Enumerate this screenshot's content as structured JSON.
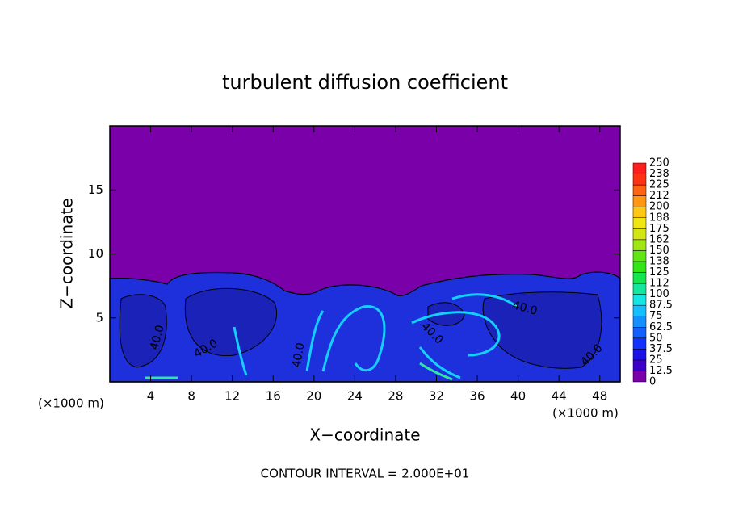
{
  "chart_data": {
    "type": "contour",
    "title": "turbulent diffusion coefficient",
    "xlabel": "X−coordinate",
    "ylabel": "Z−coordinate",
    "x_unit_left": "(×1000 m)",
    "x_unit_right": "(×1000 m)",
    "footer": "CONTOUR INTERVAL = 2.000E+01",
    "xlim": [
      0,
      50
    ],
    "ylim": [
      0,
      20
    ],
    "xticks": [
      4,
      8,
      12,
      16,
      20,
      24,
      28,
      32,
      36,
      40,
      44,
      48
    ],
    "yticks": [
      5,
      10,
      15
    ],
    "contour_labels": [
      "40.0",
      "40.0",
      "40.0",
      "40.0",
      "40.0",
      "40.0"
    ],
    "colorbar": {
      "ticks": [
        0,
        12.5,
        25,
        37.5,
        50,
        62.5,
        75,
        87.5,
        100,
        112,
        125,
        138,
        150,
        162,
        175,
        188,
        200,
        212,
        225,
        238,
        250
      ],
      "colors": [
        "#7a00aa",
        "#3c00c8",
        "#1c14e6",
        "#1432ff",
        "#1460ff",
        "#1490ff",
        "#14c0ff",
        "#14e6e6",
        "#14e6a0",
        "#14e650",
        "#30e614",
        "#60e614",
        "#a0e614",
        "#d2e614",
        "#f0e614",
        "#ffc814",
        "#ff9614",
        "#ff6414",
        "#ff3214",
        "#ff1e1e"
      ]
    }
  }
}
